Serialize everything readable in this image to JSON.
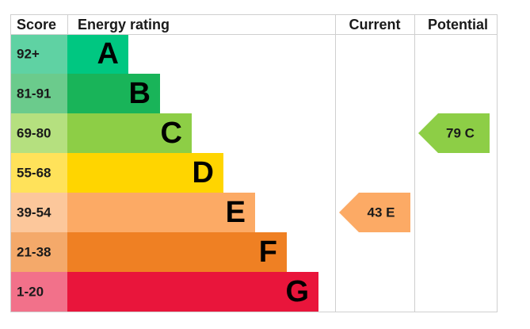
{
  "header": {
    "score": "Score",
    "rating": "Energy rating",
    "current": "Current",
    "potential": "Potential"
  },
  "bands": [
    {
      "score": "92+",
      "letter": "A"
    },
    {
      "score": "81-91",
      "letter": "B"
    },
    {
      "score": "69-80",
      "letter": "C"
    },
    {
      "score": "55-68",
      "letter": "D"
    },
    {
      "score": "39-54",
      "letter": "E"
    },
    {
      "score": "21-38",
      "letter": "F"
    },
    {
      "score": "1-20",
      "letter": "G"
    }
  ],
  "current": {
    "label": "43 E"
  },
  "potential": {
    "label": "79 C"
  }
}
